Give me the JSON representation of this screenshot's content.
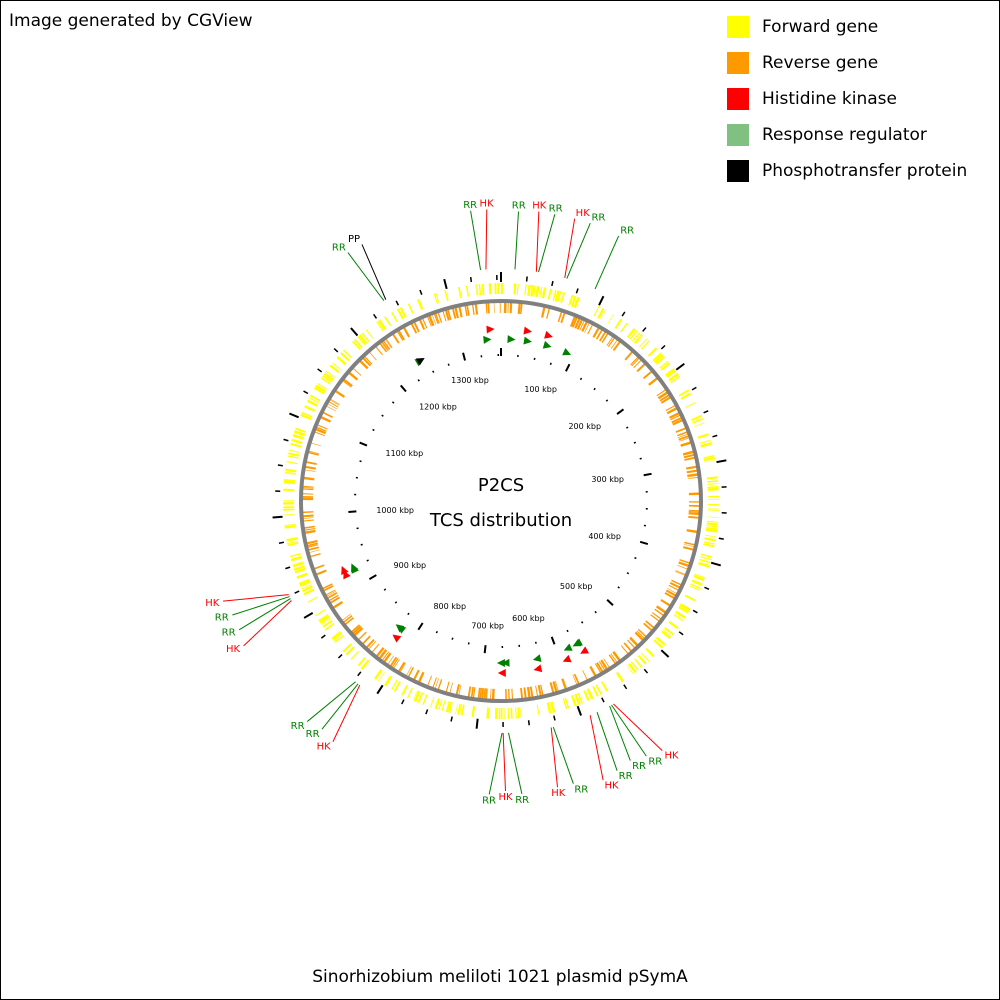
{
  "credit": "Image generated by CGView",
  "legend": [
    {
      "label": "Forward gene",
      "color": "#ffff00"
    },
    {
      "label": "Reverse gene",
      "color": "#ff9900"
    },
    {
      "label": "Histidine kinase",
      "color": "#ff0000"
    },
    {
      "label": "Response regulator",
      "color": "#80c080"
    },
    {
      "label": "Phosphotransfer protein",
      "color": "#000000"
    }
  ],
  "center": {
    "line1": "P2CS",
    "line2": "TCS distribution"
  },
  "caption": "Sinorhizobium meliloti 1021 plasmid pSymA",
  "colors": {
    "forward": "#ffff00",
    "reverse": "#ff9900",
    "hk": "#ff0000",
    "rr": "#008000",
    "rr_legend": "#80c080",
    "pp": "#000000",
    "backbone": "#808080"
  },
  "map": {
    "genome_length_kbp": 1354,
    "tick_labels": [
      "100 kbp",
      "200 kbp",
      "300 kbp",
      "400 kbp",
      "500 kbp",
      "600 kbp",
      "700 kbp",
      "800 kbp",
      "900 kbp",
      "1000 kbp",
      "1100 kbp",
      "1200 kbp",
      "1300 kbp"
    ]
  },
  "annotations": [
    {
      "label": "RR",
      "type": "rr",
      "kbp": 1335
    },
    {
      "label": "HK",
      "type": "hk",
      "kbp": 1340
    },
    {
      "label": "RR",
      "type": "rr",
      "kbp": 13
    },
    {
      "label": "HK",
      "type": "hk",
      "kbp": 33
    },
    {
      "label": "RR",
      "type": "rr",
      "kbp": 35
    },
    {
      "label": "HK",
      "type": "hk",
      "kbp": 60
    },
    {
      "label": "RR",
      "type": "rr",
      "kbp": 62
    },
    {
      "label": "RR",
      "type": "rr",
      "kbp": 90
    },
    {
      "label": "HK",
      "type": "hk",
      "kbp": 568
    },
    {
      "label": "RR",
      "type": "rr",
      "kbp": 570
    },
    {
      "label": "RR",
      "type": "rr",
      "kbp": 572
    },
    {
      "label": "RR",
      "type": "rr",
      "kbp": 585
    },
    {
      "label": "HK",
      "type": "hk",
      "kbp": 592
    },
    {
      "label": "RR",
      "type": "rr",
      "kbp": 628
    },
    {
      "label": "HK",
      "type": "hk",
      "kbp": 630
    },
    {
      "label": "RR",
      "type": "rr",
      "kbp": 670
    },
    {
      "label": "HK",
      "type": "hk",
      "kbp": 675
    },
    {
      "label": "RR",
      "type": "rr",
      "kbp": 676
    },
    {
      "label": "HK",
      "type": "hk",
      "kbp": 818
    },
    {
      "label": "RR",
      "type": "rr",
      "kbp": 820
    },
    {
      "label": "RR",
      "type": "rr",
      "kbp": 823
    },
    {
      "label": "HK",
      "type": "hk",
      "kbp": 920
    },
    {
      "label": "RR",
      "type": "rr",
      "kbp": 922
    },
    {
      "label": "RR",
      "type": "rr",
      "kbp": 924
    },
    {
      "label": "HK",
      "type": "hk",
      "kbp": 926
    },
    {
      "label": "RR",
      "type": "rr",
      "kbp": 1240
    },
    {
      "label": "PP",
      "type": "pp",
      "kbp": 1242
    }
  ]
}
